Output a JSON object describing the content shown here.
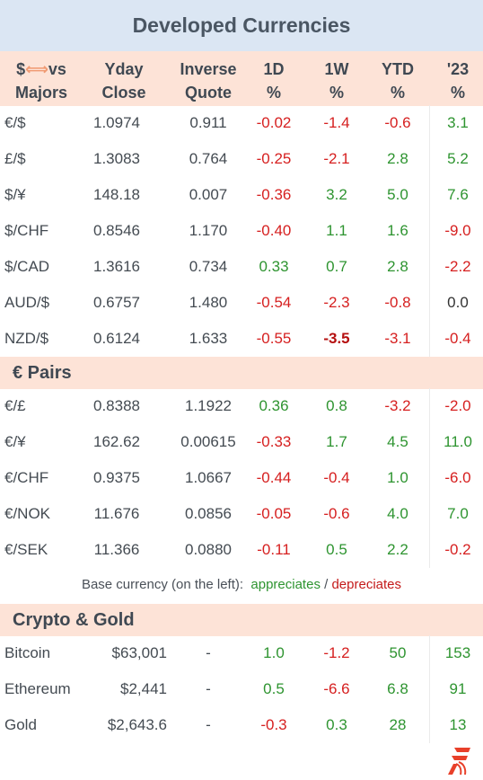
{
  "title": "Developed Currencies",
  "colors": {
    "header_bg": "#dbe6f3",
    "section_bg": "#fde3d7",
    "positive": "#2e9430",
    "negative": "#d62020"
  },
  "columns": {
    "name_prefix": "$",
    "name_arrow": "⟺",
    "name_suffix": "vs",
    "name_line2": "Majors",
    "close_1": "Yday",
    "close_2": "Close",
    "inv_1": "Inverse",
    "inv_2": "Quote",
    "d1_1": "1D",
    "d1_2": "%",
    "w1_1": "1W",
    "w1_2": "%",
    "ytd_1": "YTD",
    "ytd_2": "%",
    "y23_1": "'23",
    "y23_2": "%"
  },
  "majors": [
    {
      "name": "€/$",
      "close": "1.0974",
      "inverse": "0.911",
      "d1": "-0.02",
      "w1": "-1.4",
      "ytd": "-0.6",
      "y23": "3.1"
    },
    {
      "name": "£/$",
      "close": "1.3083",
      "inverse": "0.764",
      "d1": "-0.25",
      "w1": "-2.1",
      "ytd": "2.8",
      "y23": "5.2"
    },
    {
      "name": "$/¥",
      "close": "148.18",
      "inverse": "0.007",
      "d1": "-0.36",
      "w1": "3.2",
      "ytd": "5.0",
      "y23": "7.6"
    },
    {
      "name": "$/CHF",
      "close": "0.8546",
      "inverse": "1.170",
      "d1": "-0.40",
      "w1": "1.1",
      "ytd": "1.6",
      "y23": "-9.0"
    },
    {
      "name": "$/CAD",
      "close": "1.3616",
      "inverse": "0.734",
      "d1": "0.33",
      "w1": "0.7",
      "ytd": "2.8",
      "y23": "-2.2"
    },
    {
      "name": "AUD/$",
      "close": "0.6757",
      "inverse": "1.480",
      "d1": "-0.54",
      "w1": "-2.3",
      "ytd": "-0.8",
      "y23": "0.0"
    },
    {
      "name": "NZD/$",
      "close": "0.6124",
      "inverse": "1.633",
      "d1": "-0.55",
      "w1": "-3.5",
      "ytd": "-3.1",
      "y23": "-0.4"
    }
  ],
  "euro_section": "€ Pairs",
  "euro_pairs": [
    {
      "name": "€/£",
      "close": "0.8388",
      "inverse": "1.1922",
      "d1": "0.36",
      "w1": "0.8",
      "ytd": "-3.2",
      "y23": "-2.0"
    },
    {
      "name": "€/¥",
      "close": "162.62",
      "inverse": "0.00615",
      "d1": "-0.33",
      "w1": "1.7",
      "ytd": "4.5",
      "y23": "11.0"
    },
    {
      "name": "€/CHF",
      "close": "0.9375",
      "inverse": "1.0667",
      "d1": "-0.44",
      "w1": "-0.4",
      "ytd": "1.0",
      "y23": "-6.0"
    },
    {
      "name": "€/NOK",
      "close": "11.676",
      "inverse": "0.0856",
      "d1": "-0.05",
      "w1": "-0.6",
      "ytd": "4.0",
      "y23": "7.0"
    },
    {
      "name": "€/SEK",
      "close": "11.366",
      "inverse": "0.0880",
      "d1": "-0.11",
      "w1": "0.5",
      "ytd": "2.2",
      "y23": "-0.2"
    }
  ],
  "legend": {
    "prefix": "Base currency (on the left):",
    "appreciates": "appreciates",
    "slash": "/",
    "depreciates": "depreciates"
  },
  "crypto_section": "Crypto & Gold",
  "crypto": [
    {
      "name": "Bitcoin",
      "close": "$63,001",
      "inverse": "-",
      "d1": "1.0",
      "w1": "-1.2",
      "ytd": "50",
      "y23": "153"
    },
    {
      "name": "Ethereum",
      "close": "$2,441",
      "inverse": "-",
      "d1": "0.5",
      "w1": "-6.6",
      "ytd": "6.8",
      "y23": "91"
    },
    {
      "name": "Gold",
      "close": "$2,643.6",
      "inverse": "-",
      "d1": "-0.3",
      "w1": "0.3",
      "ytd": "28",
      "y23": "13"
    }
  ],
  "logo_icon": "brand-logo-icon"
}
